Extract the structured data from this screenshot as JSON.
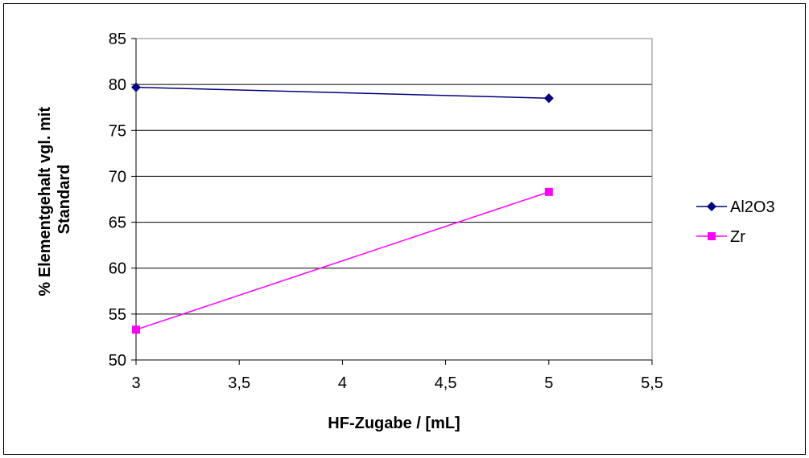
{
  "chart_data": {
    "type": "line",
    "xlabel": "HF-Zugabe / [mL]",
    "ylabel_lines": [
      "% Elementgehalt vgl. mit",
      "Standard"
    ],
    "xlim": [
      3,
      5.5
    ],
    "ylim": [
      50,
      85
    ],
    "x_ticks": [
      3,
      3.5,
      4,
      4.5,
      5,
      5.5
    ],
    "x_tick_labels": [
      "3",
      "3,5",
      "4",
      "4,5",
      "5",
      "5,5"
    ],
    "y_ticks": [
      50,
      55,
      60,
      65,
      70,
      75,
      80,
      85
    ],
    "y_tick_labels": [
      "50",
      "55",
      "60",
      "65",
      "70",
      "75",
      "80",
      "85"
    ],
    "grid": "horizontal",
    "legend_position": "right",
    "series": [
      {
        "name": "Al2O3",
        "color": "#000080",
        "marker": "diamond",
        "x": [
          3,
          5
        ],
        "values": [
          79.7,
          78.5
        ]
      },
      {
        "name": "Zr",
        "color": "#ff00ff",
        "marker": "square",
        "x": [
          3,
          5
        ],
        "values": [
          53.3,
          68.3
        ]
      }
    ]
  }
}
